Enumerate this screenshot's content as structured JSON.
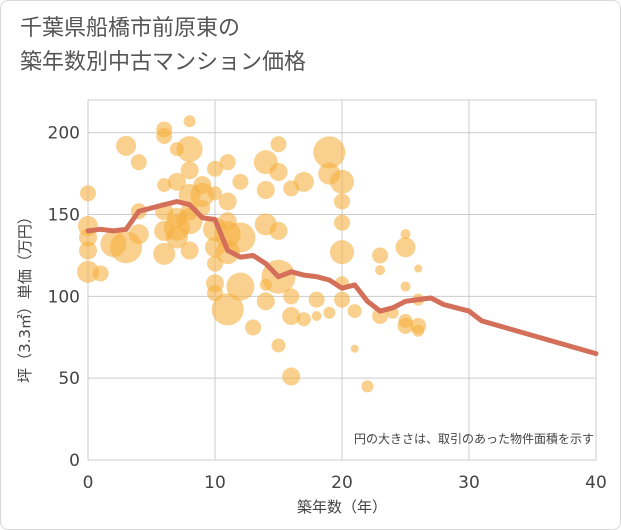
{
  "title_line1": "千葉県船橋市前原東の",
  "title_line2": "築年数別中古マンション価格",
  "chart_data": {
    "type": "scatter",
    "title": "千葉県船橋市前原東の築年数別中古マンション価格",
    "xlabel": "築年数（年）",
    "ylabel": "坪（3.3㎡）単価（万円）",
    "xlim": [
      0,
      40
    ],
    "ylim": [
      0,
      220
    ],
    "xticks": [
      "0",
      "10",
      "20",
      "30",
      "40"
    ],
    "yticks": [
      "0",
      "50",
      "100",
      "150",
      "200"
    ],
    "annotation": "円の大きさは、取引のあった物件面積を示す",
    "colors": {
      "bubble": "#f5b041",
      "line": "#d4705a",
      "grid": "#cccccc"
    },
    "points": [
      {
        "x": 0,
        "y": 163,
        "s": 8
      },
      {
        "x": 0,
        "y": 143,
        "s": 10
      },
      {
        "x": 0,
        "y": 136,
        "s": 9
      },
      {
        "x": 0,
        "y": 128,
        "s": 9
      },
      {
        "x": 0,
        "y": 115,
        "s": 11
      },
      {
        "x": 1,
        "y": 114,
        "s": 8
      },
      {
        "x": 2,
        "y": 132,
        "s": 13
      },
      {
        "x": 3,
        "y": 130,
        "s": 16
      },
      {
        "x": 3,
        "y": 192,
        "s": 10
      },
      {
        "x": 4,
        "y": 182,
        "s": 8
      },
      {
        "x": 4,
        "y": 152,
        "s": 8
      },
      {
        "x": 4,
        "y": 138,
        "s": 10
      },
      {
        "x": 6,
        "y": 202,
        "s": 8
      },
      {
        "x": 6,
        "y": 198,
        "s": 8
      },
      {
        "x": 6,
        "y": 168,
        "s": 7
      },
      {
        "x": 6,
        "y": 152,
        "s": 9
      },
      {
        "x": 6,
        "y": 140,
        "s": 10
      },
      {
        "x": 6,
        "y": 126,
        "s": 11
      },
      {
        "x": 7,
        "y": 190,
        "s": 7
      },
      {
        "x": 7,
        "y": 170,
        "s": 9
      },
      {
        "x": 7,
        "y": 148,
        "s": 10
      },
      {
        "x": 7,
        "y": 142,
        "s": 13
      },
      {
        "x": 7,
        "y": 136,
        "s": 11
      },
      {
        "x": 8,
        "y": 207,
        "s": 6
      },
      {
        "x": 8,
        "y": 190,
        "s": 13
      },
      {
        "x": 8,
        "y": 177,
        "s": 9
      },
      {
        "x": 8,
        "y": 162,
        "s": 11
      },
      {
        "x": 8,
        "y": 152,
        "s": 9
      },
      {
        "x": 8,
        "y": 146,
        "s": 13
      },
      {
        "x": 8,
        "y": 128,
        "s": 9
      },
      {
        "x": 9,
        "y": 168,
        "s": 9
      },
      {
        "x": 9,
        "y": 162,
        "s": 12
      },
      {
        "x": 9,
        "y": 154,
        "s": 8
      },
      {
        "x": 10,
        "y": 178,
        "s": 8
      },
      {
        "x": 10,
        "y": 163,
        "s": 7
      },
      {
        "x": 10,
        "y": 141,
        "s": 12
      },
      {
        "x": 10,
        "y": 130,
        "s": 10
      },
      {
        "x": 10,
        "y": 120,
        "s": 8
      },
      {
        "x": 10,
        "y": 108,
        "s": 9
      },
      {
        "x": 10,
        "y": 102,
        "s": 8
      },
      {
        "x": 11,
        "y": 182,
        "s": 8
      },
      {
        "x": 11,
        "y": 158,
        "s": 9
      },
      {
        "x": 11,
        "y": 146,
        "s": 9
      },
      {
        "x": 11,
        "y": 138,
        "s": 13
      },
      {
        "x": 11,
        "y": 127,
        "s": 12
      },
      {
        "x": 11,
        "y": 92,
        "s": 16
      },
      {
        "x": 12,
        "y": 170,
        "s": 8
      },
      {
        "x": 12,
        "y": 136,
        "s": 15
      },
      {
        "x": 12,
        "y": 106,
        "s": 14
      },
      {
        "x": 13,
        "y": 81,
        "s": 8
      },
      {
        "x": 14,
        "y": 182,
        "s": 12
      },
      {
        "x": 14,
        "y": 165,
        "s": 9
      },
      {
        "x": 14,
        "y": 144,
        "s": 11
      },
      {
        "x": 14,
        "y": 107,
        "s": 6
      },
      {
        "x": 14,
        "y": 97,
        "s": 9
      },
      {
        "x": 15,
        "y": 193,
        "s": 8
      },
      {
        "x": 15,
        "y": 176,
        "s": 9
      },
      {
        "x": 15,
        "y": 140,
        "s": 9
      },
      {
        "x": 15,
        "y": 112,
        "s": 17
      },
      {
        "x": 15,
        "y": 70,
        "s": 7
      },
      {
        "x": 16,
        "y": 166,
        "s": 8
      },
      {
        "x": 16,
        "y": 100,
        "s": 8
      },
      {
        "x": 16,
        "y": 88,
        "s": 9
      },
      {
        "x": 16,
        "y": 51,
        "s": 9
      },
      {
        "x": 17,
        "y": 170,
        "s": 10
      },
      {
        "x": 17,
        "y": 86,
        "s": 7
      },
      {
        "x": 18,
        "y": 98,
        "s": 8
      },
      {
        "x": 18,
        "y": 88,
        "s": 5
      },
      {
        "x": 19,
        "y": 188,
        "s": 16
      },
      {
        "x": 19,
        "y": 175,
        "s": 11
      },
      {
        "x": 19,
        "y": 90,
        "s": 6
      },
      {
        "x": 20,
        "y": 170,
        "s": 12
      },
      {
        "x": 20,
        "y": 158,
        "s": 8
      },
      {
        "x": 20,
        "y": 145,
        "s": 8
      },
      {
        "x": 20,
        "y": 127,
        "s": 12
      },
      {
        "x": 20,
        "y": 108,
        "s": 7
      },
      {
        "x": 20,
        "y": 98,
        "s": 8
      },
      {
        "x": 21,
        "y": 91,
        "s": 7
      },
      {
        "x": 21,
        "y": 68,
        "s": 4
      },
      {
        "x": 22,
        "y": 45,
        "s": 6
      },
      {
        "x": 23,
        "y": 125,
        "s": 8
      },
      {
        "x": 23,
        "y": 116,
        "s": 5
      },
      {
        "x": 23,
        "y": 88,
        "s": 8
      },
      {
        "x": 24,
        "y": 90,
        "s": 6
      },
      {
        "x": 25,
        "y": 138,
        "s": 5
      },
      {
        "x": 25,
        "y": 130,
        "s": 10
      },
      {
        "x": 25,
        "y": 106,
        "s": 5
      },
      {
        "x": 25,
        "y": 85,
        "s": 7
      },
      {
        "x": 25,
        "y": 82,
        "s": 8
      },
      {
        "x": 26,
        "y": 117,
        "s": 4
      },
      {
        "x": 26,
        "y": 98,
        "s": 6
      },
      {
        "x": 26,
        "y": 82,
        "s": 8
      },
      {
        "x": 26,
        "y": 79,
        "s": 6
      }
    ],
    "trend": {
      "x": [
        0,
        1,
        2,
        3,
        4,
        5,
        6,
        7,
        8,
        9,
        10,
        11,
        12,
        13,
        14,
        15,
        16,
        17,
        18,
        19,
        20,
        21,
        22,
        23,
        24,
        25,
        26,
        27,
        28,
        29,
        30,
        31,
        40
      ],
      "y": [
        140,
        141,
        140,
        141,
        152,
        154,
        156,
        158,
        156,
        148,
        147,
        128,
        124,
        125,
        120,
        112,
        115,
        113,
        112,
        110,
        105,
        107,
        97,
        91,
        93,
        97,
        98,
        99,
        95,
        93,
        91,
        85,
        65
      ]
    }
  }
}
